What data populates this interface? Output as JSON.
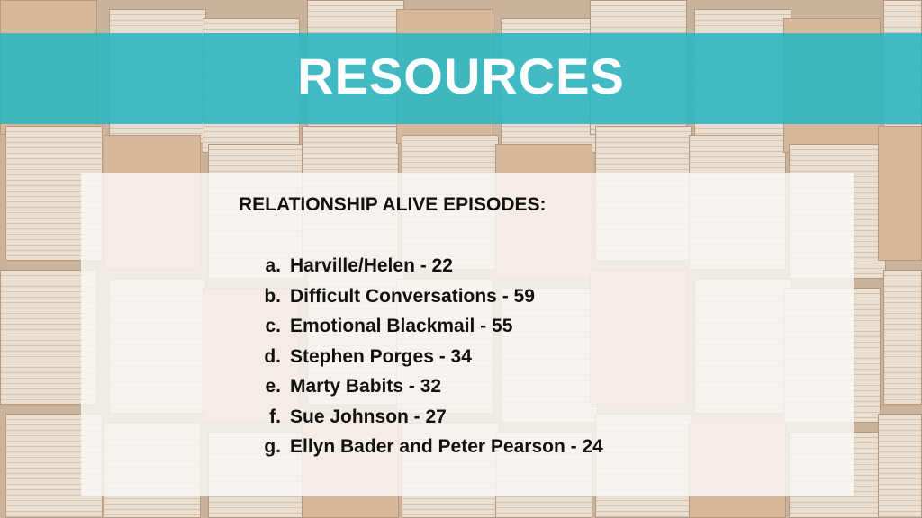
{
  "title": "RESOURCES",
  "heading": "RELATIONSHIP ALIVE EPISODES:",
  "episodes": [
    {
      "marker": "a.",
      "label": "Harville/Helen - 22"
    },
    {
      "marker": "b.",
      "label": "Difficult Conversations - 59"
    },
    {
      "marker": "c.",
      "label": "Emotional Blackmail - 55"
    },
    {
      "marker": "d.",
      "label": "Stephen Porges - 34"
    },
    {
      "marker": "e.",
      "label": "Marty Babits - 32"
    },
    {
      "marker": "f.",
      "label": "Sue Johnson - 27"
    },
    {
      "marker": "g.",
      "label": "Ellyn Bader and Peter Pearson - 24"
    }
  ],
  "colors": {
    "band": "#2ab6c1",
    "title_text": "#ffffff",
    "text": "#111111"
  }
}
